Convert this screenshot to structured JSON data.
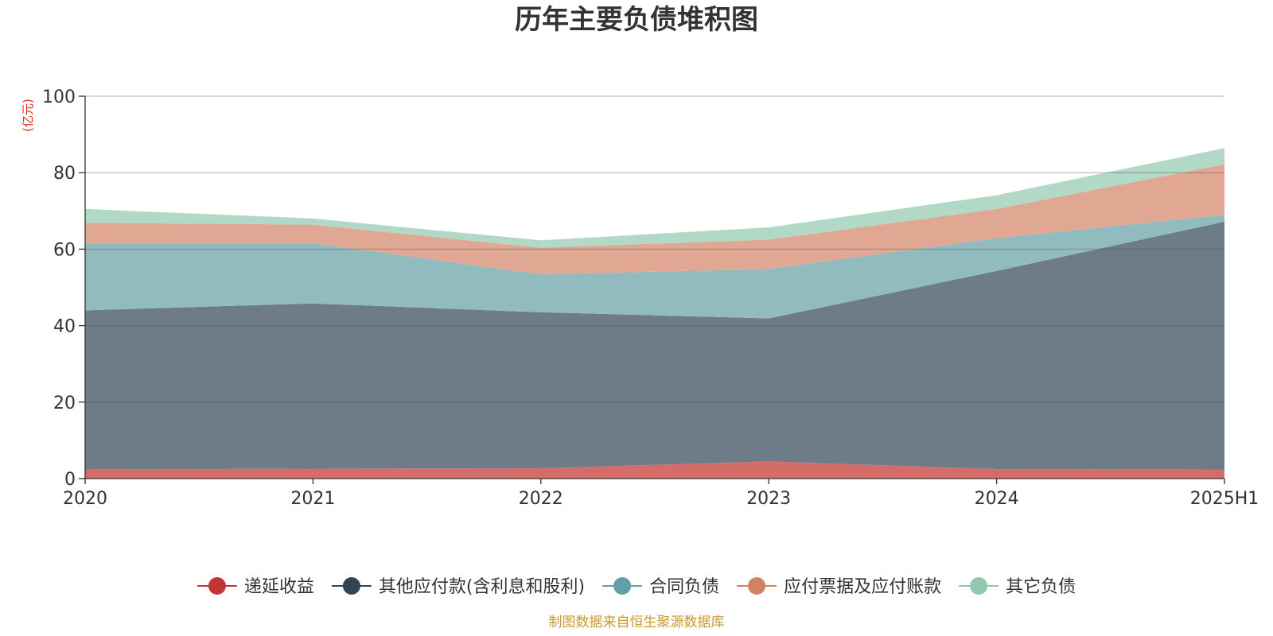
{
  "chart_data": {
    "type": "area",
    "stacked": true,
    "title": "历年主要负债堆积图",
    "unit_label": "(亿元)",
    "source": "制图数据来自恒生聚源数据库",
    "categories": [
      "2020",
      "2021",
      "2022",
      "2023",
      "2024",
      "2025H1"
    ],
    "ylim": [
      0,
      100
    ],
    "yticks": [
      0,
      20,
      40,
      60,
      80,
      100
    ],
    "grid": true,
    "legend_position": "bottom",
    "series": [
      {
        "name": "递延收益",
        "color": "#c23531",
        "fill": "#d56c6a",
        "values": [
          2.4,
          2.6,
          2.7,
          4.5,
          2.5,
          2.4
        ]
      },
      {
        "name": "其他应付款(含利息和股利)",
        "color": "#2f4554",
        "fill": "#6e7c87",
        "values": [
          41.6,
          43.2,
          40.8,
          37.4,
          51.8,
          64.8
        ]
      },
      {
        "name": "合同负债",
        "color": "#61a0a8",
        "fill": "#92bbc0",
        "values": [
          17.6,
          15.8,
          9.9,
          12.9,
          8.6,
          1.8
        ]
      },
      {
        "name": "应付票据及应付账款",
        "color": "#d48265",
        "fill": "#e0a792",
        "values": [
          5.3,
          4.8,
          7.0,
          7.7,
          7.6,
          13.2
        ]
      },
      {
        "name": "其它负债",
        "color": "#91c7ae",
        "fill": "#b2d8c6",
        "values": [
          3.6,
          1.6,
          1.9,
          3.2,
          3.6,
          4.2
        ]
      }
    ]
  }
}
